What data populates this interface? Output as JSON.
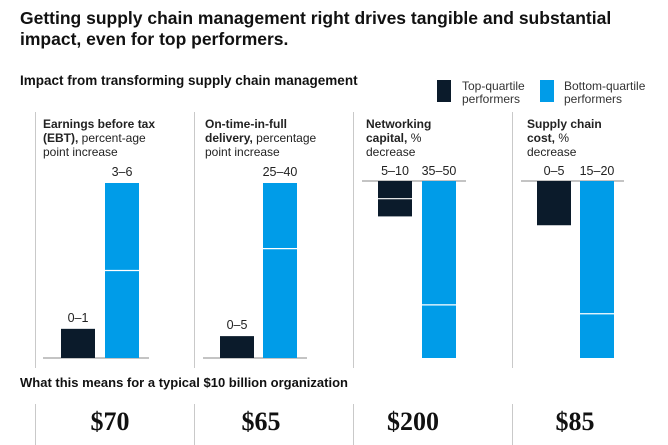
{
  "headline": "Getting supply chain management right drives tangible and substantial impact, even for top performers.",
  "subhead": "Impact from transforming supply chain management",
  "legend": {
    "top": {
      "label": "Top-quartile performers",
      "color": "#0b1b2b"
    },
    "bottom": {
      "label": "Bottom-quartile performers",
      "color": "#009ce8"
    }
  },
  "bottom_title": "What this means for a typical $10 billion organization",
  "chart_data": [
    {
      "type": "bar",
      "title_bold": "Earnings before tax (EBT),",
      "title_rest": " percent-age point increase",
      "direction": "increase",
      "series": [
        {
          "name": "Top-quartile performers",
          "range": [
            0,
            1
          ],
          "label": "0–1"
        },
        {
          "name": "Bottom-quartile performers",
          "range": [
            3,
            6
          ],
          "label": "3–6"
        }
      ],
      "ylim": [
        0,
        6
      ],
      "impact": "$70"
    },
    {
      "type": "bar",
      "title_bold": "On-time-in-full delivery,",
      "title_rest": " percentage point increase",
      "direction": "increase",
      "series": [
        {
          "name": "Top-quartile performers",
          "range": [
            0,
            5
          ],
          "label": "0–5"
        },
        {
          "name": "Bottom-quartile performers",
          "range": [
            25,
            40
          ],
          "label": "25–40"
        }
      ],
      "ylim": [
        0,
        40
      ],
      "impact": "$65"
    },
    {
      "type": "bar",
      "title_bold": "Networking capital,",
      "title_rest": " % decrease",
      "direction": "decrease",
      "series": [
        {
          "name": "Top-quartile performers",
          "range": [
            5,
            10
          ],
          "label": "5–10"
        },
        {
          "name": "Bottom-quartile performers",
          "range": [
            35,
            50
          ],
          "label": "35–50"
        }
      ],
      "ylim": [
        0,
        50
      ],
      "impact": "$200"
    },
    {
      "type": "bar",
      "title_bold": "Supply chain cost,",
      "title_rest": " % decrease",
      "direction": "decrease",
      "series": [
        {
          "name": "Top-quartile performers",
          "range": [
            0,
            5
          ],
          "label": "0–5"
        },
        {
          "name": "Bottom-quartile performers",
          "range": [
            15,
            20
          ],
          "label": "15–20"
        }
      ],
      "ylim": [
        0,
        20
      ],
      "impact": "$85"
    }
  ]
}
